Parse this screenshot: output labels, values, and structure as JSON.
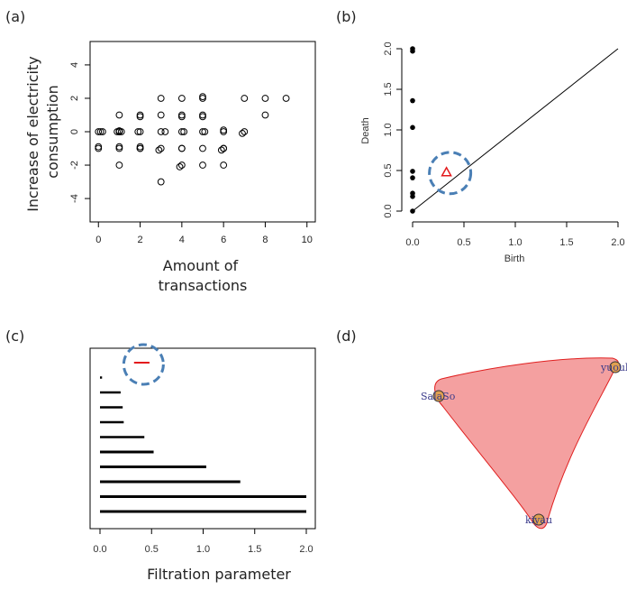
{
  "panel_labels": [
    "(a)",
    "(b)",
    "(c)",
    "(d)"
  ],
  "chart_data": [
    {
      "panel": "(a)",
      "type": "scatter",
      "xlabel": "Amount of\ntransactions",
      "ylabel": "Increase of electricity\nconsumption",
      "xlim": [
        -0.4,
        10.4
      ],
      "ylim": [
        -5.4,
        5.4
      ],
      "xticks": [
        0,
        2,
        4,
        6,
        8,
        10
      ],
      "yticks": [
        -4,
        -2,
        0,
        2,
        4
      ],
      "marker": "open-circle",
      "points": [
        [
          0,
          0
        ],
        [
          0,
          -1
        ],
        [
          0,
          -0.9
        ],
        [
          0.1,
          0
        ],
        [
          0.2,
          0
        ],
        [
          1,
          1
        ],
        [
          1,
          0
        ],
        [
          1,
          0
        ],
        [
          1,
          -1
        ],
        [
          1,
          -0.9
        ],
        [
          1,
          -2
        ],
        [
          0.9,
          0
        ],
        [
          1.1,
          0
        ],
        [
          1,
          0.05
        ],
        [
          2,
          1
        ],
        [
          2,
          0.9
        ],
        [
          2,
          0
        ],
        [
          2,
          -1
        ],
        [
          2,
          -1
        ],
        [
          2,
          -0.9
        ],
        [
          1.9,
          0
        ],
        [
          3,
          2
        ],
        [
          3,
          1
        ],
        [
          3,
          0
        ],
        [
          3,
          -1
        ],
        [
          3,
          -3
        ],
        [
          3.2,
          0
        ],
        [
          2.9,
          -1.1
        ],
        [
          4,
          2
        ],
        [
          4,
          1
        ],
        [
          4,
          0.9
        ],
        [
          4,
          0
        ],
        [
          4,
          -1
        ],
        [
          4,
          -1
        ],
        [
          4,
          -2
        ],
        [
          3.9,
          -2.1
        ],
        [
          4.1,
          0
        ],
        [
          5,
          2
        ],
        [
          5,
          2.1
        ],
        [
          5,
          1
        ],
        [
          5,
          0.9
        ],
        [
          5,
          0
        ],
        [
          5,
          -1
        ],
        [
          5,
          -2
        ],
        [
          5.1,
          0
        ],
        [
          6,
          0
        ],
        [
          6,
          0.1
        ],
        [
          6,
          -1
        ],
        [
          6,
          -1
        ],
        [
          6,
          -2
        ],
        [
          5.9,
          -1.1
        ],
        [
          7,
          2
        ],
        [
          7,
          0
        ],
        [
          6.9,
          -0.1
        ],
        [
          8,
          2
        ],
        [
          8,
          1
        ],
        [
          9,
          2
        ]
      ]
    },
    {
      "panel": "(b)",
      "type": "scatter",
      "subtype": "persistence-diagram",
      "xlabel": "Birth",
      "ylabel": "Death",
      "xlim": [
        0,
        2
      ],
      "ylim": [
        0,
        2
      ],
      "xticks": [
        "0.0",
        "0.5",
        "1.0",
        "1.5",
        "2.0"
      ],
      "yticks": [
        "0.0",
        "0.5",
        "1.0",
        "1.5",
        "2.0"
      ],
      "diagonal": true,
      "points_dim0": [
        [
          0,
          0
        ],
        [
          0,
          0.18
        ],
        [
          0,
          0.22
        ],
        [
          0,
          0.41
        ],
        [
          0,
          0.49
        ],
        [
          0,
          1.03
        ],
        [
          0,
          1.36
        ],
        [
          0,
          1.97
        ],
        [
          0,
          2.0
        ]
      ],
      "points_dim1": [
        [
          0.33,
          0.48
        ]
      ],
      "colors": {
        "dim0": "#000000",
        "dim1": "#e31a1c",
        "highlight": "#4a7fb5"
      }
    },
    {
      "panel": "(c)",
      "type": "bar",
      "subtype": "persistence-barcode",
      "xlabel": "Filtration parameter",
      "xlim": [
        0,
        2
      ],
      "xticks": [
        "0.0",
        "0.5",
        "1.0",
        "1.5",
        "2.0"
      ],
      "bars": [
        {
          "birth": 0.33,
          "death": 0.48,
          "dim": 1
        },
        {
          "birth": 0,
          "death": 0.02,
          "dim": 0
        },
        {
          "birth": 0,
          "death": 0.2,
          "dim": 0
        },
        {
          "birth": 0,
          "death": 0.22,
          "dim": 0
        },
        {
          "birth": 0,
          "death": 0.23,
          "dim": 0
        },
        {
          "birth": 0,
          "death": 0.43,
          "dim": 0
        },
        {
          "birth": 0,
          "death": 0.52,
          "dim": 0
        },
        {
          "birth": 0,
          "death": 1.03,
          "dim": 0
        },
        {
          "birth": 0,
          "death": 1.36,
          "dim": 0
        },
        {
          "birth": 0,
          "death": 2.0,
          "dim": 0
        },
        {
          "birth": 0,
          "death": 2.0,
          "dim": 0
        }
      ],
      "colors": {
        "dim0": "#000000",
        "dim1": "#e31a1c",
        "highlight": "#4a7fb5"
      }
    }
  ],
  "simplex": {
    "nodes": [
      {
        "label": "yuouki"
      },
      {
        "label": "SalaSo"
      },
      {
        "label": "kiyau"
      }
    ],
    "fill": "#f4a0a0",
    "stroke": "#e02020",
    "node_fill": "#e0a050"
  }
}
